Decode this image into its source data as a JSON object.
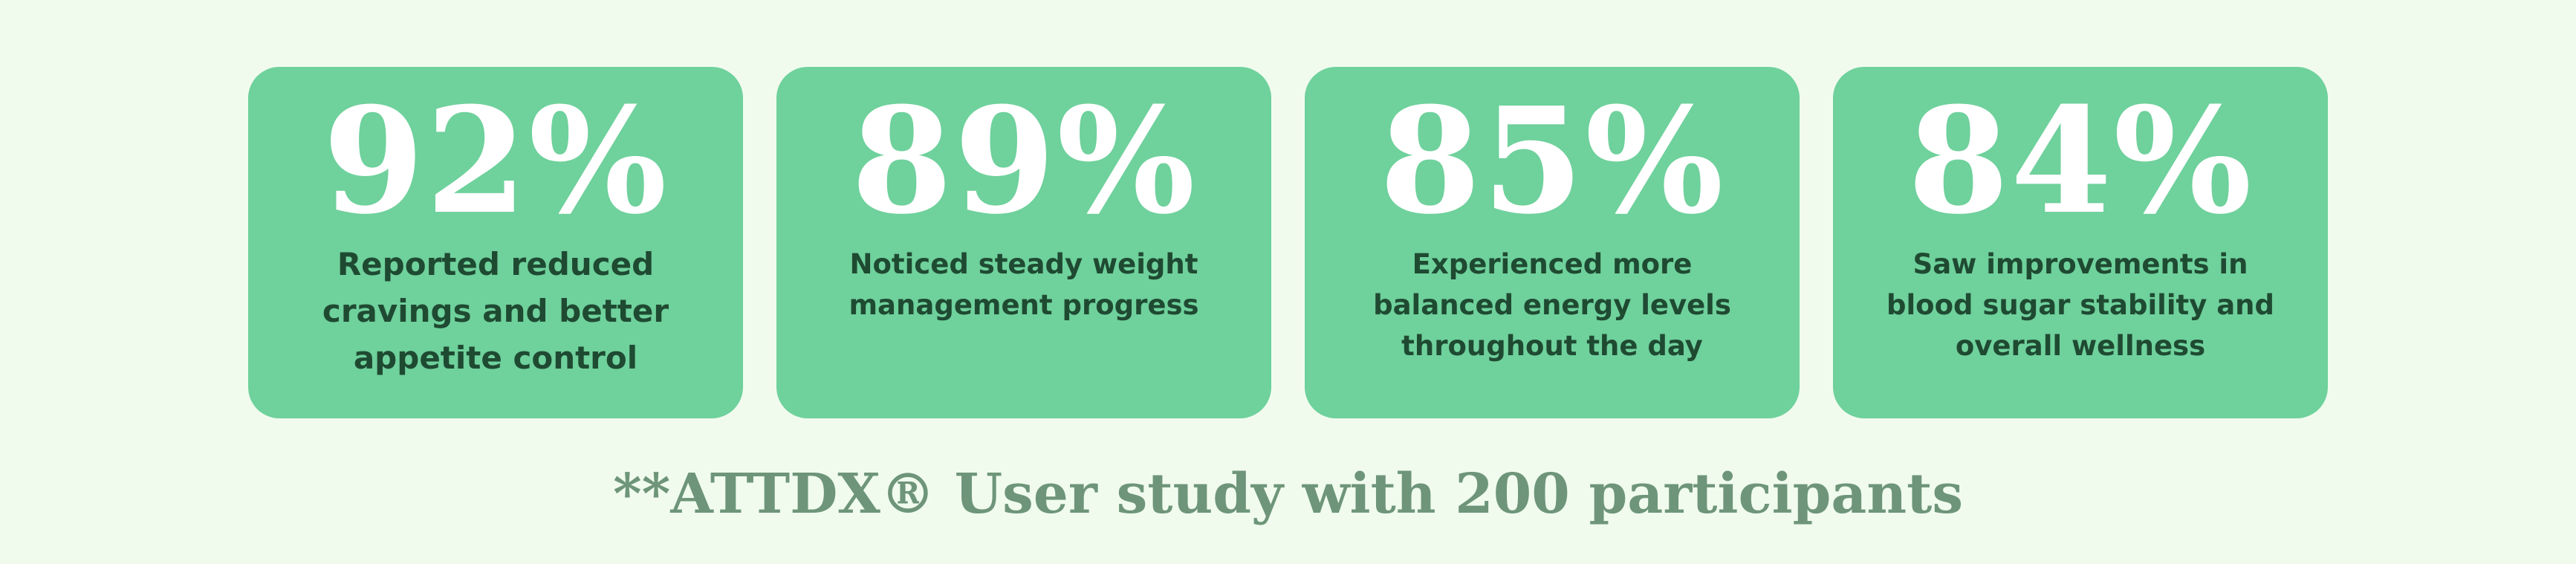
{
  "stats": [
    {
      "value": "92%",
      "caption": "Reported reduced cravings and better appetite control"
    },
    {
      "value": "89%",
      "caption": "Noticed steady weight management progress"
    },
    {
      "value": "85%",
      "caption": "Experienced more balanced energy levels throughout the day"
    },
    {
      "value": "84%",
      "caption": "Saw improvements in blood sugar stability and overall wellness"
    }
  ],
  "footnote": "**ATTDX® User study with 200 participants",
  "colors": {
    "background": "#f0fbee",
    "card": "#6fd19c",
    "value_text": "#ffffff",
    "caption_text": "#1f4a32",
    "footnote_text": "#6e9579"
  }
}
